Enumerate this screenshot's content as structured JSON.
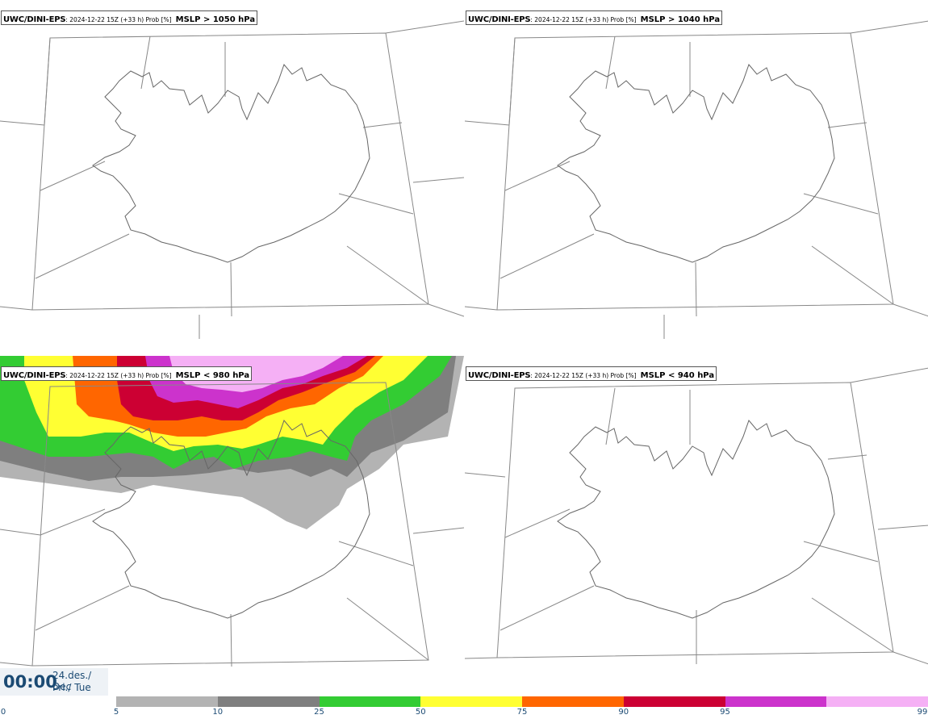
{
  "panels": [
    {
      "model": "UWC/DINI-EPS",
      "meta": ": 2024-12-22 15Z (+33 h) Prob [%]",
      "threshold": "MSLP > 1050 hPa",
      "shaded": false
    },
    {
      "model": "UWC/DINI-EPS",
      "meta": ": 2024-12-22 15Z (+33 h) Prob [%]",
      "threshold": "MSLP > 1040 hPa",
      "shaded": false
    },
    {
      "model": "UWC/DINI-EPS",
      "meta": ": 2024-12-22 15Z (+33 h) Prob [%]",
      "threshold": "MSLP < 980 hPa",
      "shaded": true
    },
    {
      "model": "UWC/DINI-EPS",
      "meta": ": 2024-12-22 15Z (+33 h) Prob [%]",
      "threshold": "MSLP < 940 hPa",
      "shaded": false
    }
  ],
  "time_display": {
    "time": "00:00",
    "date_line1": "24.des./ Dec",
    "date_line2": "Þri./ Tue"
  },
  "colorbar": {
    "ticks": [
      "0",
      "5",
      "10",
      "25",
      "50",
      "75",
      "90",
      "95",
      "99"
    ],
    "colors": [
      "#b3b3b3",
      "#7f7f7f",
      "#33cc33",
      "#ffff33",
      "#ff6600",
      "#cc0033",
      "#cc33cc",
      "#f5b0f5"
    ]
  }
}
